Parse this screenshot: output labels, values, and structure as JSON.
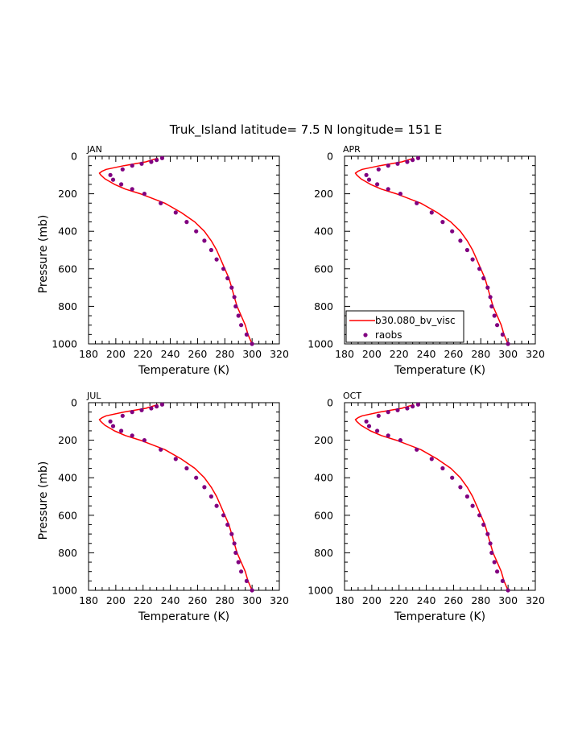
{
  "figure": {
    "title": "Truk_Island  latitude= 7.5 N longitude= 151 E"
  },
  "chart_data": {
    "type": "line",
    "xlabel": "Temperature (K)",
    "ylabel": "Pressure (mb)",
    "xlim": [
      180,
      320
    ],
    "ylim": [
      0,
      1000
    ],
    "y_inverted": true,
    "xticks": [
      180,
      200,
      220,
      240,
      260,
      280,
      300,
      320
    ],
    "yticks": [
      0,
      200,
      400,
      600,
      800,
      1000
    ],
    "legend": {
      "location": "lower-left of APR panel",
      "entries": [
        {
          "name": "b30.080_bv_visc",
          "style": "line",
          "color": "#ff0000"
        },
        {
          "name": "raobs",
          "style": "dot",
          "color": "#800080"
        }
      ]
    },
    "model_profile": {
      "name": "b30.080_bv_visc",
      "pressure": [
        10,
        30,
        50,
        70,
        80,
        90,
        100,
        120,
        150,
        175,
        200,
        250,
        300,
        350,
        400,
        450,
        500,
        550,
        600,
        650,
        700,
        750,
        800,
        850,
        900,
        950,
        1000
      ],
      "temperature": [
        231,
        222,
        206,
        193,
        190,
        188,
        189,
        192,
        199,
        207,
        218,
        236,
        248,
        258,
        265,
        270,
        274,
        277,
        280,
        283,
        285,
        287,
        289,
        292,
        295,
        297,
        300
      ]
    },
    "observed_profile": {
      "name": "raobs",
      "pressure": [
        10,
        20,
        30,
        40,
        50,
        70,
        100,
        125,
        150,
        175,
        200,
        250,
        300,
        350,
        400,
        450,
        500,
        550,
        600,
        650,
        700,
        750,
        800,
        850,
        900,
        950,
        1000
      ],
      "temperature": [
        234,
        230,
        226,
        219,
        212,
        205,
        196,
        198,
        204,
        212,
        221,
        233,
        244,
        252,
        259,
        265,
        270,
        274,
        279,
        282,
        285,
        287,
        288,
        290,
        292,
        296,
        300
      ]
    },
    "panels": [
      {
        "label": "JAN",
        "show_ylabel": true,
        "legend": false
      },
      {
        "label": "APR",
        "show_ylabel": false,
        "legend": true
      },
      {
        "label": "JUL",
        "show_ylabel": true,
        "legend": false
      },
      {
        "label": "OCT",
        "show_ylabel": false,
        "legend": false
      }
    ]
  }
}
